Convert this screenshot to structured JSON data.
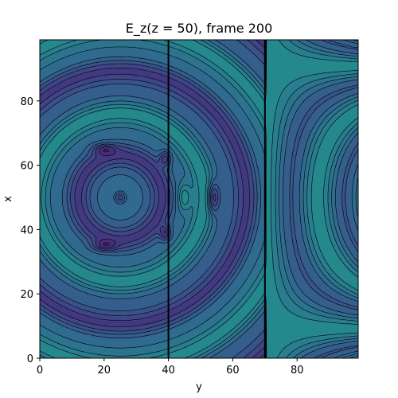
{
  "chart_data": {
    "type": "heatmap",
    "subtype": "filled-contour",
    "title": "E_z(z = 50), frame 200",
    "xlabel": "y",
    "ylabel": "x",
    "xlim": [
      0,
      99
    ],
    "ylim": [
      0,
      99
    ],
    "xticks": [
      0,
      20,
      40,
      60,
      80
    ],
    "yticks": [
      0,
      20,
      40,
      60,
      80
    ],
    "colormap": "viridis",
    "contour_line_color": "#000000",
    "vertical_lines_at_y": [
      40,
      70
    ],
    "features": [
      {
        "kind": "source_minimum",
        "y": 25,
        "x": 50,
        "level": "lowest"
      },
      {
        "kind": "lobe_low",
        "y": 54,
        "x": 50
      },
      {
        "kind": "lobe_high",
        "y": 45,
        "x": 50
      },
      {
        "kind": "lobe_low",
        "y": 20,
        "x": 65
      },
      {
        "kind": "lobe_low",
        "y": 20,
        "x": 35
      },
      {
        "kind": "lobe_low",
        "y": 39,
        "x": 62
      },
      {
        "kind": "lobe_low",
        "y": 39,
        "x": 39
      }
    ]
  }
}
